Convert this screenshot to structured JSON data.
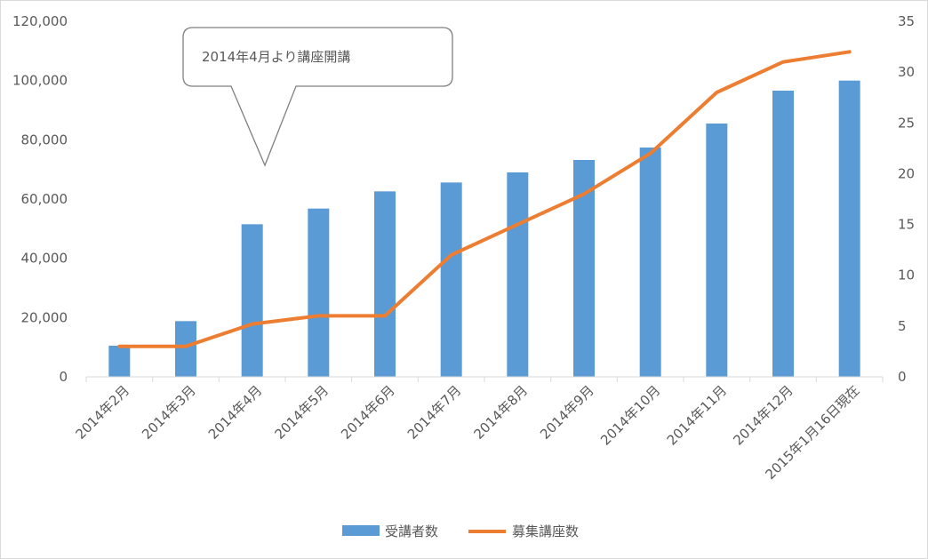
{
  "chart_data": {
    "type": "bar",
    "categories": [
      "2014年2月",
      "2014年3月",
      "2014年4月",
      "2014年5月",
      "2014年6月",
      "2014年7月",
      "2014年8月",
      "2014年9月",
      "2014年10月",
      "2014年11月",
      "2014年12月",
      "2015年1月16日現在"
    ],
    "series": [
      {
        "name": "受講者数",
        "type": "bar",
        "axis": "left",
        "color": "#5b9bd5",
        "values": [
          10500,
          18800,
          51500,
          56800,
          62600,
          65600,
          69000,
          73200,
          77400,
          85500,
          96600,
          100000
        ]
      },
      {
        "name": "募集講座数",
        "type": "line",
        "axis": "right",
        "color": "#ed7d31",
        "values": [
          3,
          3,
          5.2,
          6,
          6,
          12,
          15,
          18,
          22,
          28,
          31,
          32
        ]
      }
    ],
    "y_left": {
      "min": 0,
      "max": 120000,
      "step": 20000,
      "ticks": [
        "0",
        "20,000",
        "40,000",
        "60,000",
        "80,000",
        "100,000",
        "120,000"
      ]
    },
    "y_right": {
      "min": 0,
      "max": 35,
      "step": 5,
      "ticks": [
        "0",
        "5",
        "10",
        "15",
        "20",
        "25",
        "30",
        "35"
      ]
    },
    "grid": false,
    "legend_position": "bottom",
    "annotation": {
      "text": "2014年4月より講座開講",
      "target_category": "2014年4月"
    }
  }
}
